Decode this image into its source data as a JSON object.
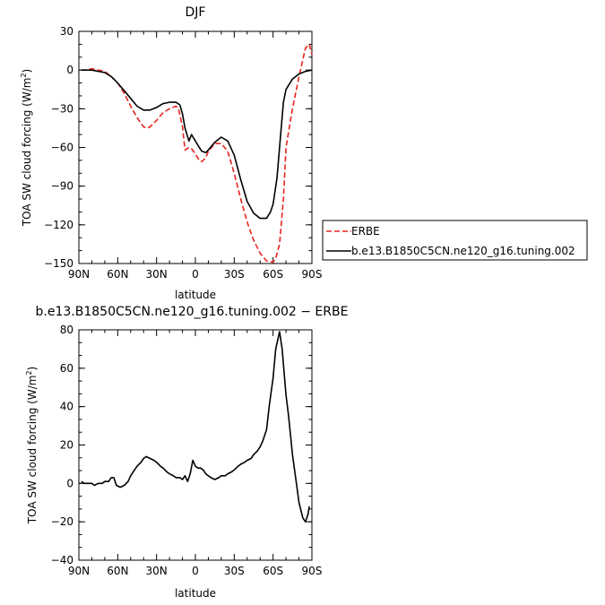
{
  "chart_data": [
    {
      "type": "line",
      "title": "DJF",
      "xlabel": "latitude",
      "ylabel_main": "TOA SW cloud forcing (W/m",
      "ylabel_sup": "2",
      "ylabel_close": ")",
      "xlim": [
        90,
        -90
      ],
      "ylim": [
        -150,
        30
      ],
      "xticks": [
        90,
        60,
        30,
        0,
        -30,
        -60,
        -90
      ],
      "xtick_labels": [
        "90N",
        "60N",
        "30N",
        "0",
        "30S",
        "60S",
        "90S"
      ],
      "yticks": [
        30,
        0,
        -30,
        -60,
        -90,
        -120,
        -150
      ],
      "ytick_labels": [
        "30",
        "0",
        "−30",
        "−60",
        "−90",
        "−120",
        "−150"
      ],
      "legend": "right",
      "series": [
        {
          "name": "ERBE",
          "color": "#e8241d",
          "dash": "dashed",
          "x": [
            88,
            85,
            80,
            75,
            70,
            65,
            60,
            55,
            50,
            45,
            40,
            37,
            35,
            30,
            25,
            20,
            15,
            13,
            10,
            8,
            5,
            3,
            0,
            -3,
            -5,
            -8,
            -10,
            -15,
            -20,
            -25,
            -30,
            -35,
            -40,
            -45,
            -50,
            -55,
            -60,
            -62,
            -65,
            -68,
            -70,
            -75,
            -80,
            -85,
            -88,
            -90
          ],
          "y": [
            0,
            0,
            1,
            0,
            -1,
            -5,
            -10,
            -18,
            -28,
            -37,
            -44,
            -45,
            -44,
            -39,
            -33,
            -30,
            -28,
            -30,
            -44,
            -62,
            -60,
            -61,
            -65,
            -70,
            -71,
            -68,
            -63,
            -57,
            -57,
            -63,
            -80,
            -100,
            -118,
            -132,
            -142,
            -148,
            -149,
            -146,
            -135,
            -100,
            -60,
            -30,
            -5,
            17,
            20,
            12
          ]
        },
        {
          "name": "b.e13.B1850C5CN.ne120_g16.tuning.002",
          "color": "#000000",
          "dash": "solid",
          "x": [
            88,
            85,
            80,
            75,
            70,
            65,
            60,
            55,
            50,
            45,
            40,
            35,
            30,
            25,
            20,
            15,
            12,
            10,
            8,
            5,
            3,
            0,
            -3,
            -5,
            -8,
            -10,
            -15,
            -20,
            -25,
            -30,
            -35,
            -40,
            -45,
            -50,
            -55,
            -58,
            -60,
            -63,
            -65,
            -68,
            -70,
            -75,
            -80,
            -85,
            -90
          ],
          "y": [
            0,
            0,
            0,
            -1,
            -2,
            -5,
            -10,
            -16,
            -22,
            -28,
            -31,
            -31,
            -29,
            -26,
            -25,
            -25,
            -27,
            -34,
            -45,
            -55,
            -50,
            -55,
            -60,
            -63,
            -64,
            -62,
            -56,
            -52,
            -55,
            -66,
            -85,
            -102,
            -111,
            -115,
            -115,
            -110,
            -104,
            -84,
            -60,
            -25,
            -15,
            -7,
            -3,
            -1,
            0
          ]
        }
      ]
    },
    {
      "type": "line",
      "title": "b.e13.B1850C5CN.ne120_g16.tuning.002  −  ERBE",
      "xlabel": "latitude",
      "ylabel_main": "TOA SW cloud forcing (W/m",
      "ylabel_sup": "2",
      "ylabel_close": ")",
      "xlim": [
        90,
        -90
      ],
      "ylim": [
        -40,
        80
      ],
      "xticks": [
        90,
        60,
        30,
        0,
        -30,
        -60,
        -90
      ],
      "xtick_labels": [
        "90N",
        "60N",
        "30N",
        "0",
        "30S",
        "60S",
        "90S"
      ],
      "yticks": [
        80,
        60,
        40,
        20,
        0,
        -20,
        -40
      ],
      "ytick_labels": [
        "80",
        "60",
        "40",
        "20",
        "0",
        "−20",
        "−40"
      ],
      "series": [
        {
          "color": "#000000",
          "x": [
            88,
            86,
            83,
            80,
            78,
            75,
            72,
            70,
            67,
            65,
            63,
            61,
            58,
            55,
            52,
            50,
            47,
            45,
            42,
            40,
            38,
            35,
            32,
            30,
            27,
            25,
            22,
            20,
            17,
            15,
            12,
            10,
            8,
            6,
            4,
            2,
            0,
            -2,
            -4,
            -6,
            -8,
            -10,
            -12,
            -15,
            -18,
            -20,
            -23,
            -25,
            -28,
            -30,
            -33,
            -35,
            -38,
            -40,
            -43,
            -45,
            -48,
            -50,
            -52,
            -55,
            -57,
            -60,
            -62,
            -65,
            -67,
            -70,
            -72,
            -75,
            -78,
            -80,
            -83,
            -85,
            -87,
            -88
          ],
          "y": [
            1,
            0,
            0,
            0,
            -1,
            0,
            0,
            1,
            1,
            3,
            3,
            -1,
            -2,
            -1,
            1,
            4,
            7,
            9,
            11,
            13,
            14,
            13,
            12,
            11,
            9,
            8,
            6,
            5,
            4,
            3,
            3,
            2,
            4,
            1,
            5,
            12,
            9,
            8,
            8,
            7,
            5,
            4,
            3,
            2,
            3,
            4,
            4,
            5,
            6,
            7,
            9,
            10,
            11,
            12,
            13,
            15,
            17,
            19,
            22,
            28,
            40,
            55,
            70,
            79,
            70,
            46,
            35,
            15,
            0,
            -10,
            -18,
            -20,
            -16,
            -12
          ]
        }
      ]
    }
  ]
}
